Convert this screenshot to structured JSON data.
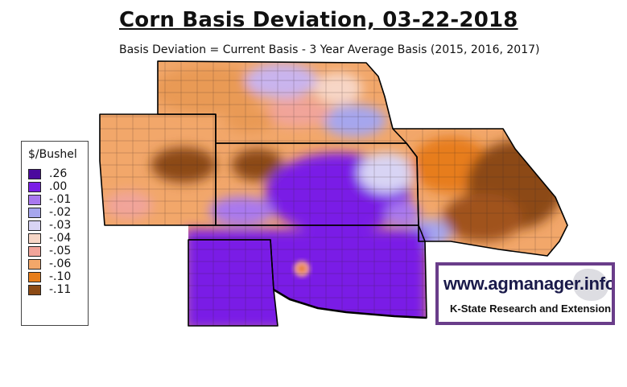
{
  "title": "Corn Basis Deviation, 03-22-2018",
  "subtitle": "Basis Deviation = Current Basis - 3 Year Average Basis (2015, 2016, 2017)",
  "legend": {
    "title": "$/Bushel",
    "items": [
      {
        "label": ".26",
        "color": "#4b0a9e"
      },
      {
        "label": ".00",
        "color": "#7a1ee6"
      },
      {
        "label": "-.01",
        "color": "#a978ef"
      },
      {
        "label": "-.02",
        "color": "#a6a6ee"
      },
      {
        "label": "-.03",
        "color": "#d8d4f4"
      },
      {
        "label": "-.04",
        "color": "#f7d6c6"
      },
      {
        "label": "-.05",
        "color": "#f1a49a"
      },
      {
        "label": "-.06",
        "color": "#f2a76a"
      },
      {
        "label": "-.10",
        "color": "#e77d1a"
      },
      {
        "label": "-.11",
        "color": "#8c4a14"
      }
    ]
  },
  "brand": {
    "url": "www.agmanager.info",
    "org": "K-State Research and Extension"
  }
}
